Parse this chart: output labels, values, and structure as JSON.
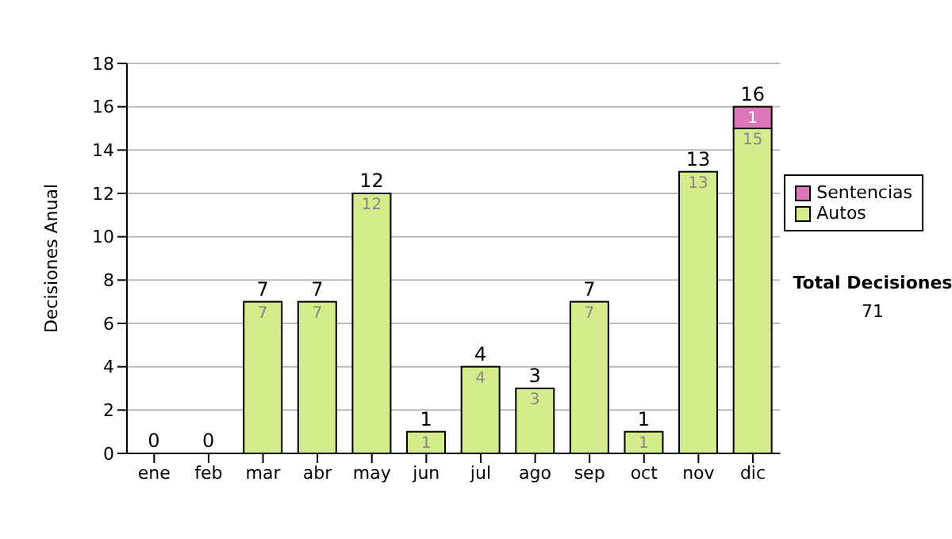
{
  "chart_data": {
    "type": "bar",
    "stacked": true,
    "ylabel": "Decisiones Anual",
    "categories": [
      "ene",
      "feb",
      "mar",
      "abr",
      "may",
      "jun",
      "jul",
      "ago",
      "sep",
      "oct",
      "nov",
      "dic"
    ],
    "series": [
      {
        "name": "Autos",
        "color": "#d4ec8c",
        "values": [
          0,
          0,
          7,
          7,
          12,
          1,
          4,
          3,
          7,
          1,
          13,
          15
        ],
        "value_labels": [
          null,
          null,
          "7",
          "7",
          "12",
          "1",
          "4",
          "3",
          "7",
          "1",
          "13",
          "15"
        ]
      },
      {
        "name": "Sentencias",
        "color": "#dd77bb",
        "values": [
          0,
          0,
          0,
          0,
          0,
          0,
          0,
          0,
          0,
          0,
          0,
          1
        ],
        "value_labels": [
          null,
          null,
          null,
          null,
          null,
          null,
          null,
          null,
          null,
          null,
          null,
          "1"
        ]
      }
    ],
    "totals": [
      "0",
      "0",
      "7",
      "7",
      "12",
      "1",
      "4",
      "3",
      "7",
      "1",
      "13",
      "16"
    ],
    "ylim": [
      0,
      18
    ],
    "yticks": [
      0,
      2,
      4,
      6,
      8,
      10,
      12,
      14,
      16,
      18
    ],
    "grid": "y",
    "legend": "right",
    "annotations": [
      "Total Decisiones",
      "71"
    ]
  }
}
